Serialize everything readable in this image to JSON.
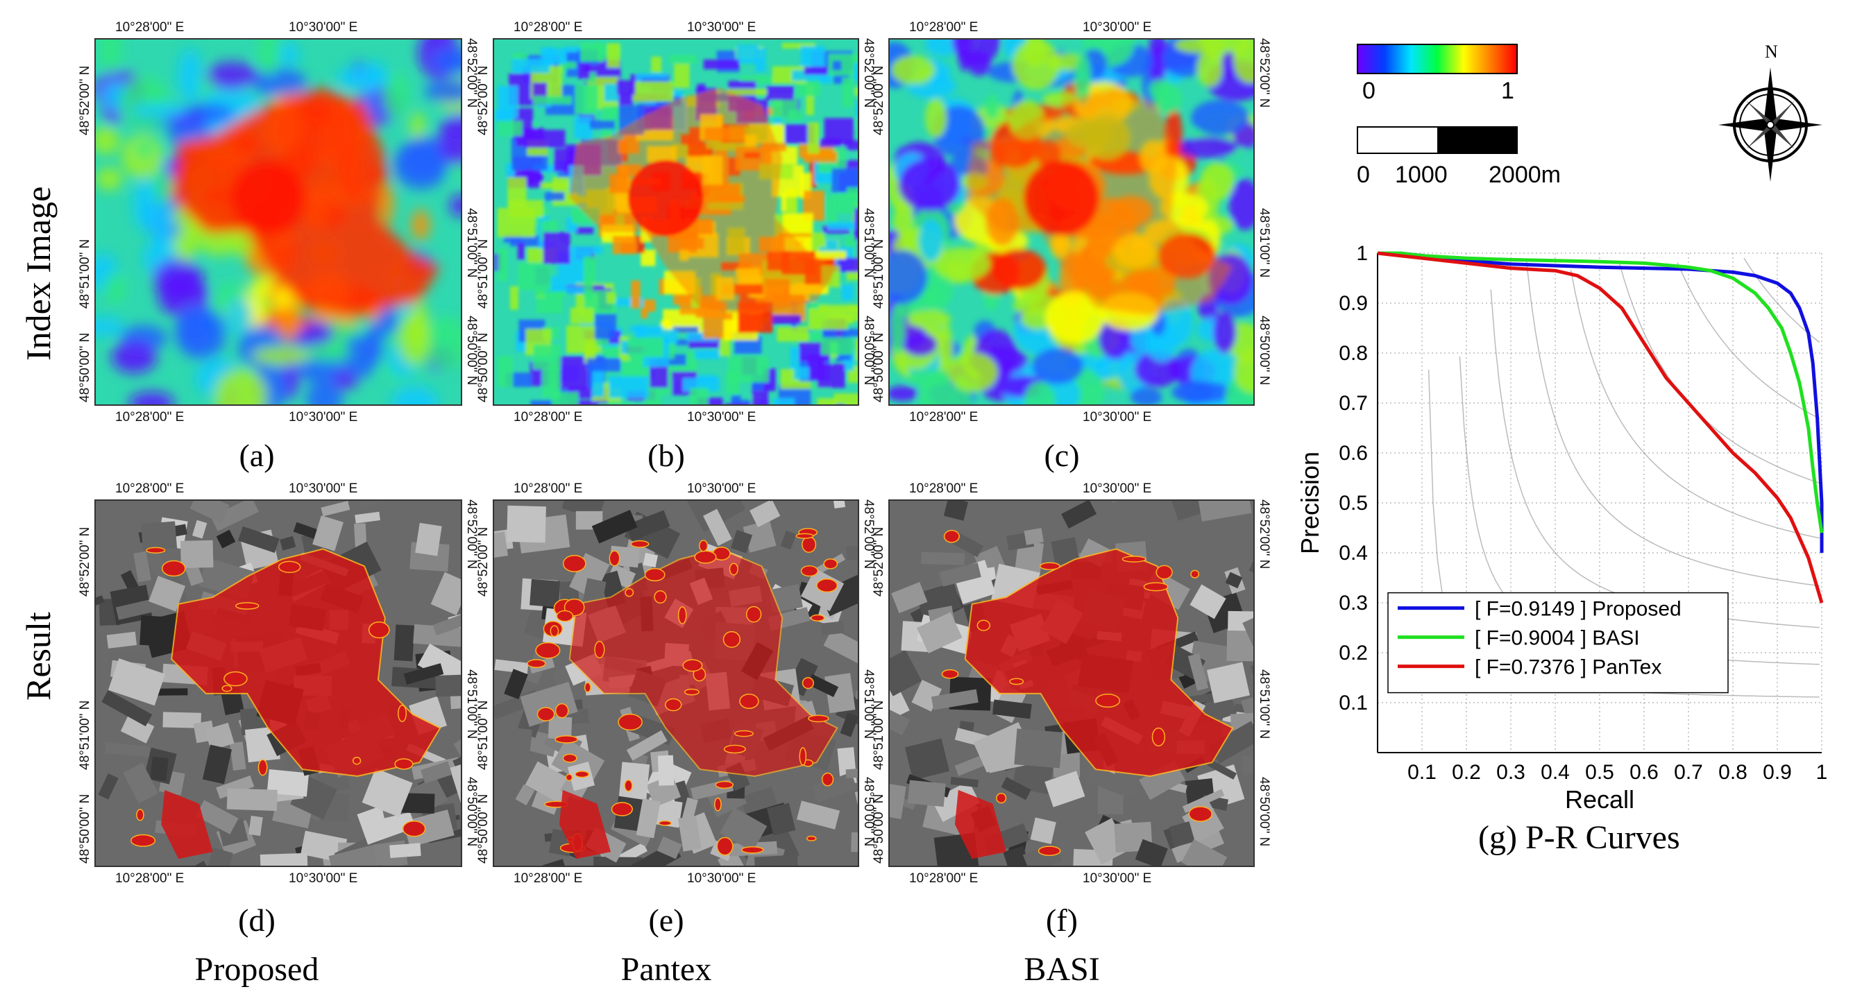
{
  "row_titles": [
    "Index Image",
    "Result"
  ],
  "panel_labels": [
    "(a)",
    "(b)",
    "(c)",
    "(d)",
    "(e)",
    "(f)"
  ],
  "column_titles": [
    "Proposed",
    "Pantex",
    "BASI"
  ],
  "coords": {
    "top_left": "10°28'00\" E",
    "top_right": "10°30'00\" E",
    "lat_top": "48°52'00\" N",
    "lat_mid": "48°51'00\" N",
    "lat_bot": "48°50'00\" N"
  },
  "colorbar": {
    "min_label": "0",
    "max_label": "1",
    "colors": [
      "#6a00ff",
      "#0040ff",
      "#00e5ff",
      "#00ff40",
      "#ffff00",
      "#ff8000",
      "#ff0000"
    ]
  },
  "scalebar": {
    "labels": [
      "0",
      "1000",
      "2000m"
    ]
  },
  "compass": {
    "north_label": "N"
  },
  "chart_data": {
    "type": "line",
    "caption": "(g) P-R Curves",
    "xlabel": "Recall",
    "ylabel": "Precision",
    "xlim": [
      0,
      1
    ],
    "ylim": [
      0,
      1
    ],
    "xticks": [
      "0.1",
      "0.2",
      "0.3",
      "0.4",
      "0.5",
      "0.6",
      "0.7",
      "0.8",
      "0.9",
      "1"
    ],
    "yticks": [
      "0.1",
      "0.2",
      "0.3",
      "0.4",
      "0.5",
      "0.6",
      "0.7",
      "0.8",
      "0.9",
      "1"
    ],
    "grid": true,
    "legend_position": "bottom-left",
    "series": [
      {
        "name": "[ F=0.9149 ] Proposed",
        "color": "#1010e0",
        "x": [
          0.0,
          0.05,
          0.1,
          0.2,
          0.3,
          0.4,
          0.5,
          0.6,
          0.7,
          0.8,
          0.85,
          0.9,
          0.93,
          0.95,
          0.97,
          0.98,
          0.99,
          1.0,
          1.0
        ],
        "y": [
          1.0,
          1.0,
          0.995,
          0.985,
          0.978,
          0.975,
          0.972,
          0.97,
          0.968,
          0.962,
          0.955,
          0.94,
          0.92,
          0.89,
          0.84,
          0.78,
          0.67,
          0.5,
          0.4
        ]
      },
      {
        "name": "[ F=0.9004 ] BASI",
        "color": "#20e020",
        "x": [
          0.0,
          0.05,
          0.1,
          0.2,
          0.3,
          0.4,
          0.5,
          0.6,
          0.7,
          0.75,
          0.8,
          0.85,
          0.88,
          0.91,
          0.93,
          0.95,
          0.97,
          0.98,
          0.99,
          1.0
        ],
        "y": [
          1.0,
          1.0,
          0.995,
          0.99,
          0.987,
          0.985,
          0.983,
          0.98,
          0.972,
          0.965,
          0.95,
          0.92,
          0.89,
          0.85,
          0.8,
          0.74,
          0.65,
          0.57,
          0.5,
          0.44
        ]
      },
      {
        "name": "[ F=0.7376 ] PanTex",
        "color": "#e01010",
        "x": [
          0.0,
          0.05,
          0.1,
          0.2,
          0.3,
          0.4,
          0.45,
          0.5,
          0.55,
          0.6,
          0.65,
          0.7,
          0.75,
          0.8,
          0.85,
          0.9,
          0.93,
          0.95,
          0.97,
          0.98,
          0.99,
          1.0
        ],
        "y": [
          1.0,
          0.995,
          0.99,
          0.98,
          0.97,
          0.965,
          0.955,
          0.93,
          0.89,
          0.82,
          0.75,
          0.7,
          0.65,
          0.6,
          0.56,
          0.51,
          0.47,
          0.43,
          0.39,
          0.36,
          0.33,
          0.3
        ]
      }
    ]
  }
}
